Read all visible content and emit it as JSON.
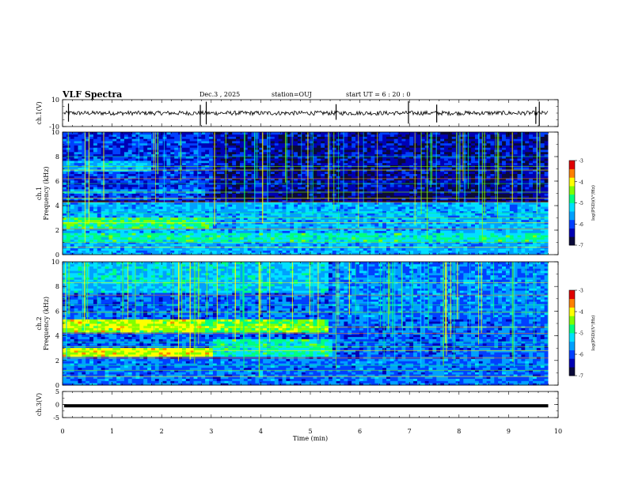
{
  "header": {
    "title": "VLF Spectra",
    "date": "Dec.3 , 2025",
    "station": "station=OUJ",
    "start": "start UT = 6 : 20 : 0"
  },
  "colors": {
    "ramp": [
      "#0a0a3a",
      "#0000b4",
      "#0040ff",
      "#00a0ff",
      "#00e0ff",
      "#00ff80",
      "#80ff00",
      "#ffff00",
      "#ff8000",
      "#e00000"
    ]
  },
  "chart_data": [
    {
      "type": "line",
      "name": "ch1-waveform",
      "ylabel": "ch.1(V)",
      "ylim": [
        -10,
        10
      ],
      "yticklabels": [
        "10",
        "-10"
      ],
      "baseline": 0
    },
    {
      "type": "heatmap",
      "name": "ch1-spectrogram",
      "ylabel": "ch.1\nFrequency (kHz)",
      "ylabel_line1": "ch.1",
      "ylabel_line2": "Frequency (kHz)",
      "ylim": [
        0,
        10
      ],
      "yticklabels": [
        "0",
        "2",
        "4",
        "6",
        "8",
        "10"
      ],
      "colorbar": {
        "label": "log(PSD)(V²/Hz)",
        "range": [
          -7,
          -3
        ],
        "ticklabels": [
          "-3",
          "-4",
          "-5",
          "-6",
          "-7"
        ]
      }
    },
    {
      "type": "heatmap",
      "name": "ch2-spectrogram",
      "ylabel": "ch.2\nFrequency (kHz)",
      "ylabel_line1": "ch.2",
      "ylabel_line2": "Frequency (kHz)",
      "ylim": [
        0,
        10
      ],
      "yticklabels": [
        "0",
        "2",
        "4",
        "6",
        "8",
        "10"
      ],
      "colorbar": {
        "label": "log(PSD)(V²/Hz)",
        "range": [
          -7,
          -3
        ],
        "ticklabels": [
          "-3",
          "-4",
          "-5",
          "-6",
          "-7"
        ]
      }
    },
    {
      "type": "line",
      "name": "ch3-waveform",
      "ylabel": "ch.3(V)",
      "ylim": [
        -5,
        5
      ],
      "yticklabels": [
        "5",
        "0",
        "-5"
      ],
      "baseline": -0.5
    }
  ],
  "xaxis": {
    "label": "Time (min)",
    "range": [
      0,
      10
    ],
    "data_end": 9.8,
    "ticklabels": [
      "0",
      "1",
      "2",
      "3",
      "4",
      "5",
      "6",
      "7",
      "8",
      "9",
      "10"
    ]
  }
}
